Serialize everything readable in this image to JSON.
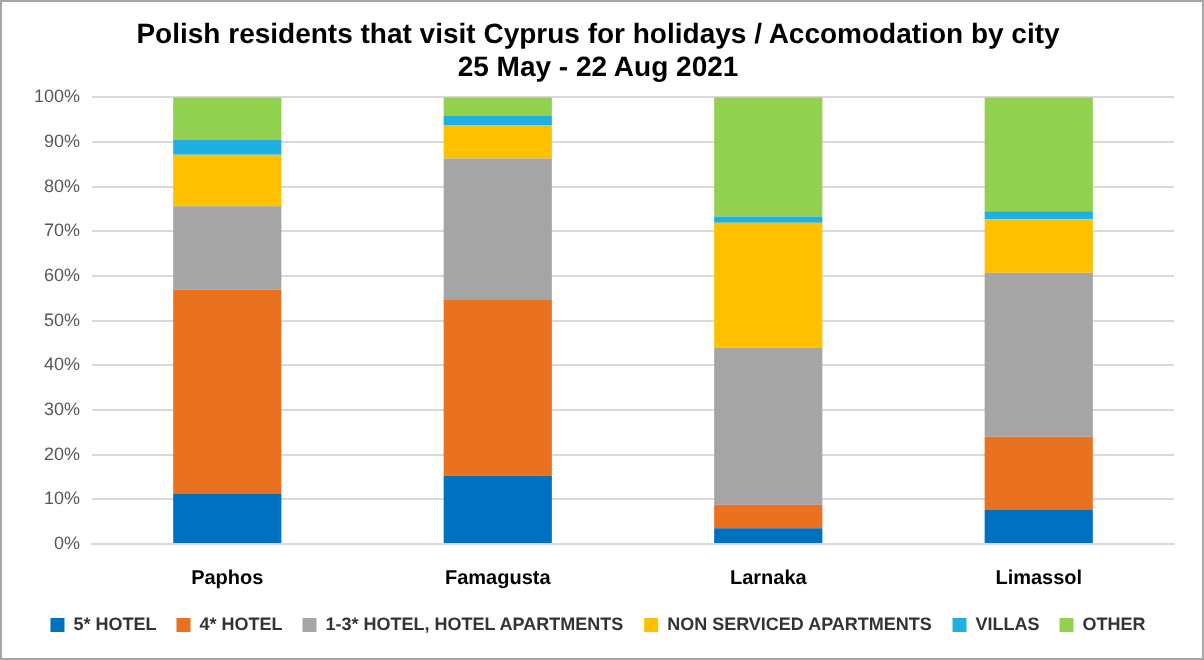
{
  "chart_data": {
    "type": "bar",
    "title": "Polish residents that visit Cyprus for holidays / Accomodation by city",
    "subtitle": "25 May - 22 Aug 2021",
    "categories": [
      "Paphos",
      "Famagusta",
      "Larnaka",
      "Limassol"
    ],
    "stacked": true,
    "series": [
      {
        "name": "5* HOTEL",
        "color": "#0070c0",
        "values": [
          11.2,
          15.3,
          3.5,
          7.6
        ]
      },
      {
        "name": "4* HOTEL",
        "color": "#e97120",
        "values": [
          45.7,
          39.3,
          5.3,
          16.4
        ]
      },
      {
        "name": "1-3* HOTEL, HOTEL APARTMENTS",
        "color": "#a5a5a5",
        "values": [
          18.7,
          31.7,
          35.1,
          36.7
        ]
      },
      {
        "name": "NON SERVICED APARTMENTS",
        "color": "#ffc000",
        "values": [
          11.5,
          7.5,
          28.0,
          12.0
        ]
      },
      {
        "name": "VILLAS",
        "color": "#1fb0e0",
        "values": [
          3.3,
          2.0,
          1.4,
          1.8
        ]
      },
      {
        "name": "OTHER",
        "color": "#92d050",
        "values": [
          9.6,
          4.2,
          26.7,
          25.5
        ]
      }
    ],
    "ylim": [
      0,
      100
    ],
    "yticks": [
      {
        "value": 0,
        "label": "0%"
      },
      {
        "value": 10,
        "label": "10%"
      },
      {
        "value": 20,
        "label": "20%"
      },
      {
        "value": 30,
        "label": "30%"
      },
      {
        "value": 40,
        "label": "40%"
      },
      {
        "value": 50,
        "label": "50%"
      },
      {
        "value": 60,
        "label": "60%"
      },
      {
        "value": 70,
        "label": "70%"
      },
      {
        "value": 80,
        "label": "80%"
      },
      {
        "value": 90,
        "label": "90%"
      },
      {
        "value": 100,
        "label": "100%"
      }
    ],
    "grid": "y",
    "legend": "bottom"
  }
}
